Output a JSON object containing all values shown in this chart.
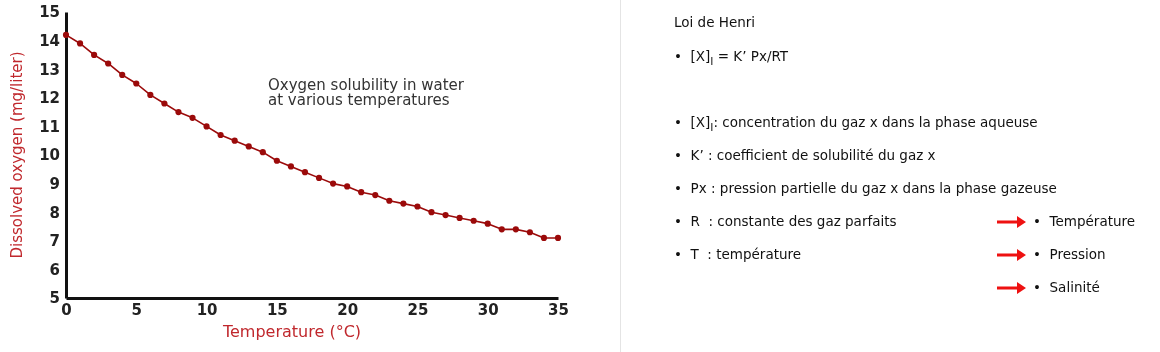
{
  "chart_data": [
    {
      "type": "line",
      "xlabel": "Temperature (°C)",
      "ylabel": "Dissolved oxygen (mg/liter)",
      "annotations": [
        "Oxygen solubility in water\nat various temperatures"
      ],
      "x": [
        0,
        1,
        2,
        3,
        4,
        5,
        6,
        7,
        8,
        9,
        10,
        11,
        12,
        13,
        14,
        15,
        16,
        17,
        18,
        19,
        20,
        21,
        22,
        23,
        24,
        25,
        26,
        27,
        28,
        29,
        30,
        31,
        32,
        33,
        34,
        35
      ],
      "series": [
        {
          "color": "#9b0a0a",
          "values": [
            14.2,
            13.9,
            13.5,
            13.2,
            12.8,
            12.5,
            12.1,
            11.8,
            11.5,
            11.3,
            11.0,
            10.7,
            10.5,
            10.3,
            10.1,
            9.8,
            9.6,
            9.4,
            9.2,
            9.0,
            8.9,
            8.7,
            8.6,
            8.4,
            8.3,
            8.2,
            8.0,
            7.9,
            7.8,
            7.7,
            7.6,
            7.4,
            7.4,
            7.3,
            7.1,
            7.1
          ]
        }
      ],
      "xlim": [
        0,
        35
      ],
      "xticks": [
        0,
        5,
        10,
        15,
        20,
        25,
        30,
        35
      ],
      "ylim": [
        5,
        15
      ],
      "yticks": [
        5,
        6,
        7,
        8,
        9,
        10,
        11,
        12,
        13,
        14,
        15
      ],
      "marker": "circle",
      "line_style": "solid",
      "grid": false
    },
    {
      "type": "other",
      "title": "Loi de Henri",
      "annotations": [
        "•  [X]$_{l}$ = K’ Px/RT",
        "•  [X]$_{l}$: concentration du gaz x dans la phase aqueuse",
        "•  K’ : coefficient de solubilité du gaz x",
        "•  Px : pression partielle du gaz x dans la phase gazeuse",
        "•  R  : constante des gaz parfaits",
        "•  T  : température",
        "•  Température",
        "•  Pression",
        "•  Salinité"
      ]
    }
  ]
}
